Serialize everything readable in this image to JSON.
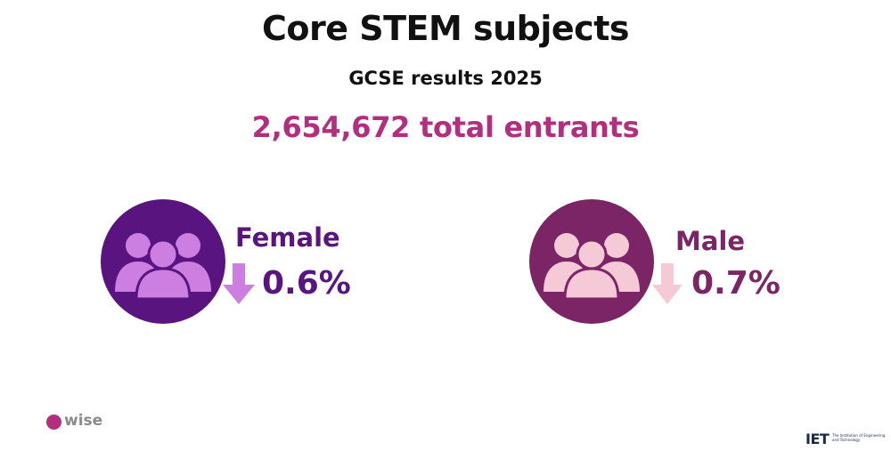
{
  "header": {
    "title": "Core STEM subjects",
    "subtitle": "GCSE results 2025",
    "total_entrants": "2,654,672 total entrants"
  },
  "groups": [
    {
      "label": "Female",
      "change": "0.6%",
      "direction": "down",
      "icon": "people-group-icon",
      "circle_color": "#5a1480",
      "people_color": "#cc7fe0",
      "label_color": "#5a1480",
      "arrow_color": "#cc7fe0"
    },
    {
      "label": "Male",
      "change": "0.7%",
      "direction": "down",
      "icon": "people-group-icon",
      "circle_color": "#7b2466",
      "people_color": "#f5c9d6",
      "label_color": "#7b2466",
      "arrow_color": "#f5c9d6"
    }
  ],
  "colors": {
    "accent": "#b32e7e",
    "title": "#111111"
  },
  "logos": {
    "left_word": "wise",
    "right_mark": "IET",
    "right_tagline": "The Institution of Engineering and Technology"
  }
}
